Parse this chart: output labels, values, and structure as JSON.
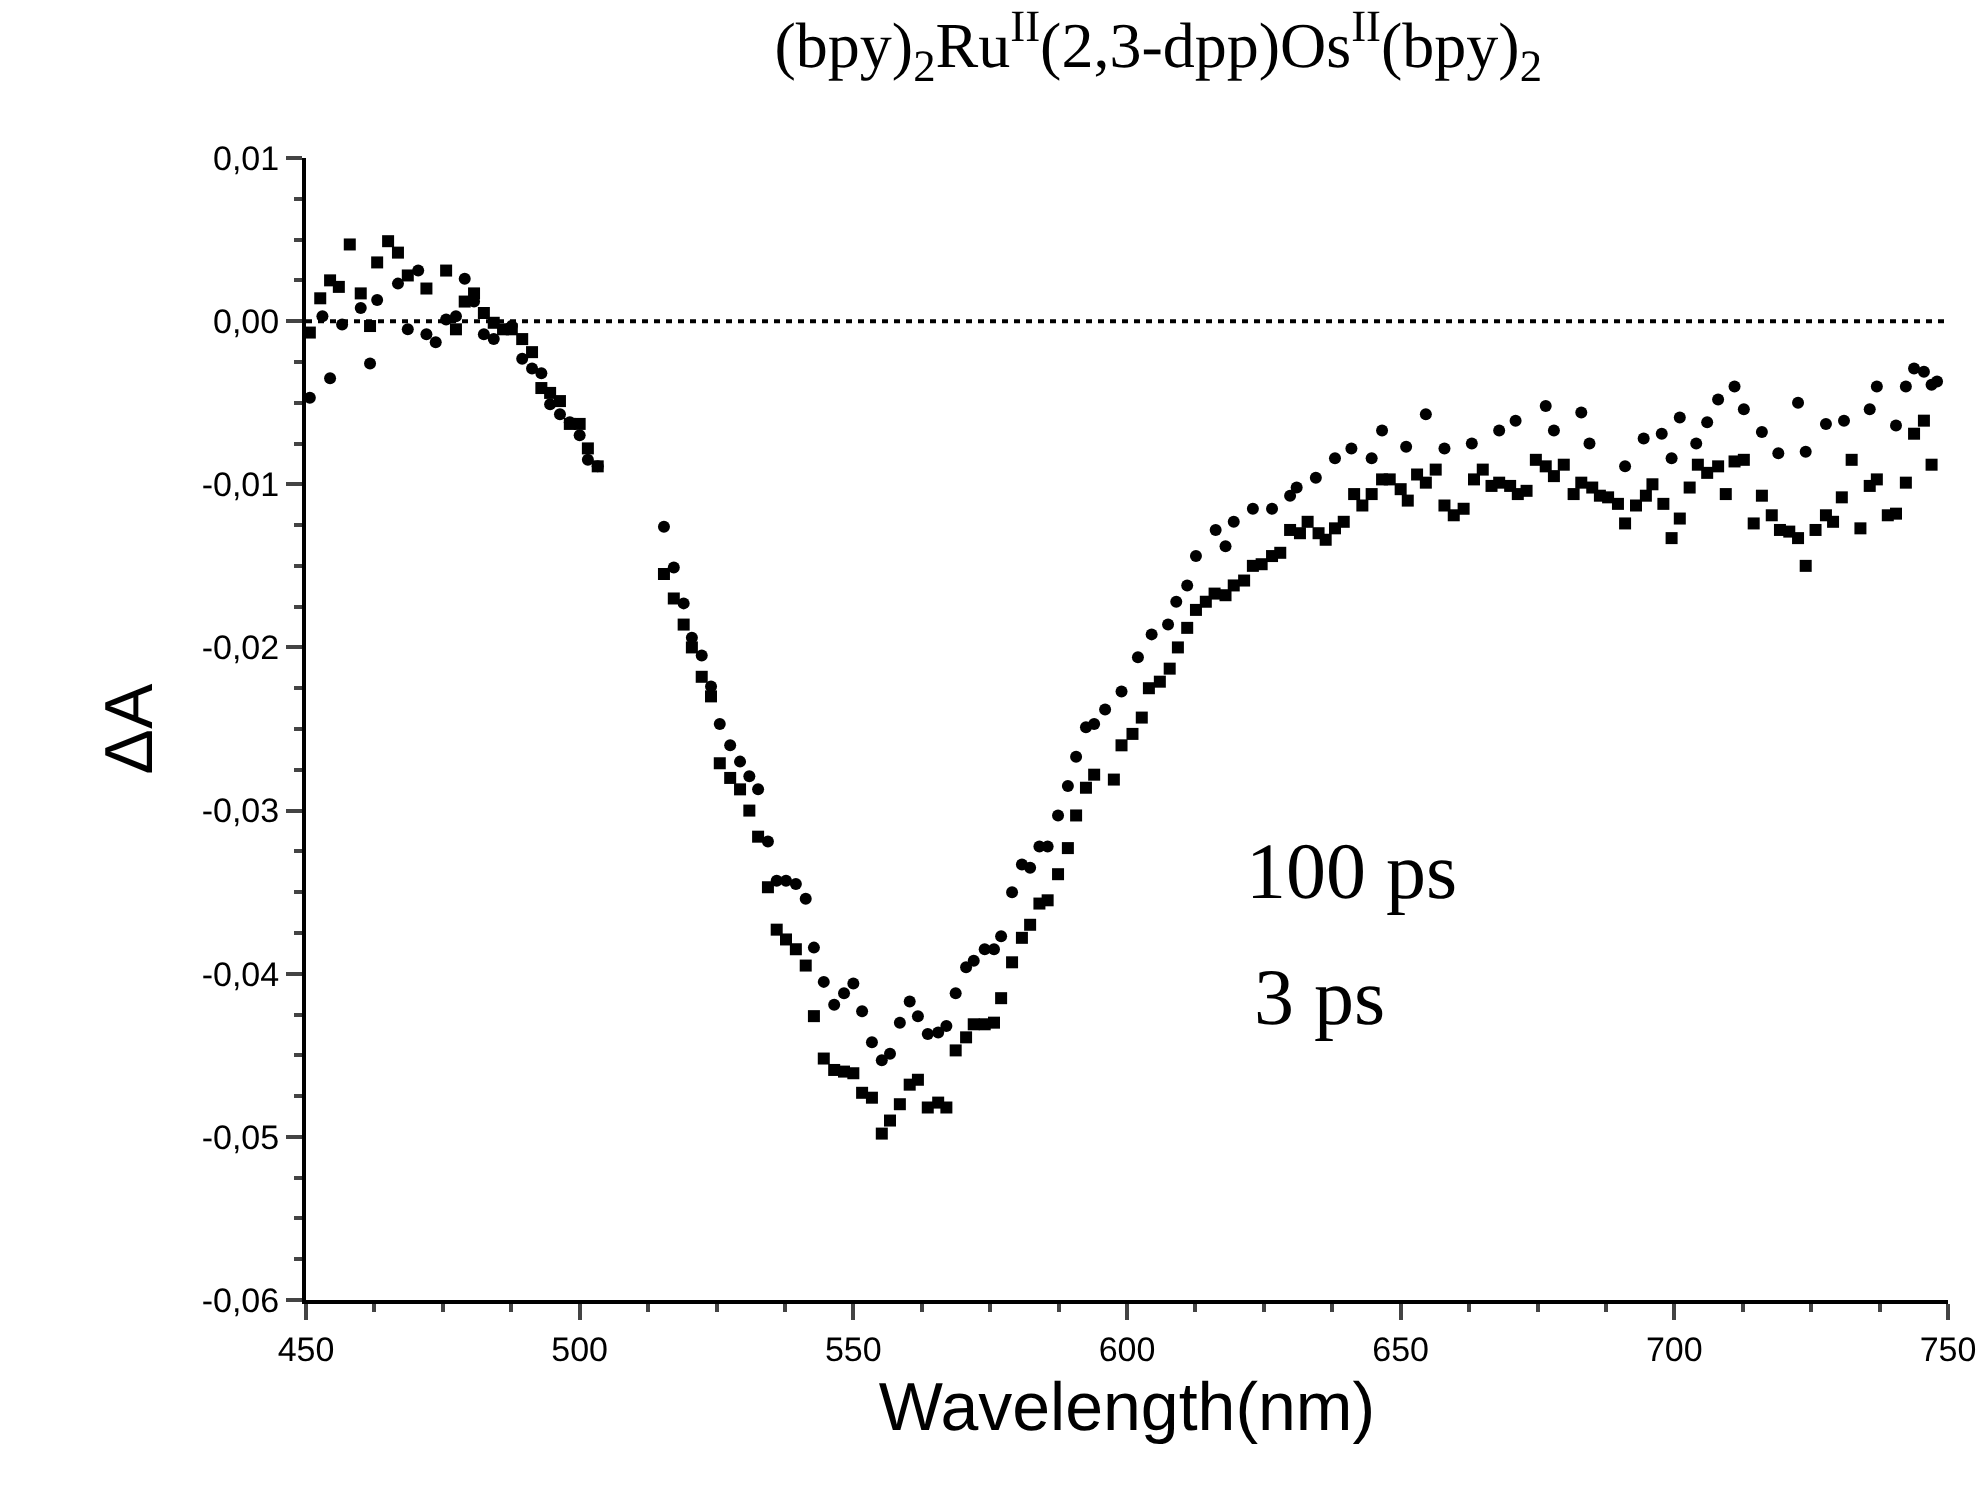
{
  "chart_data": {
    "type": "scatter",
    "title": "(bpy)$_{2}$Ru$^{II}$(2,3-dpp)Os$^{II}$(bpy)$_{2}$",
    "xlabel": "Wavelength(nm)",
    "ylabel": "ΔA",
    "xlim": [
      450,
      750
    ],
    "xticks": [
      450,
      500,
      550,
      600,
      650,
      700,
      750
    ],
    "ylim": [
      -0.06,
      0.01
    ],
    "yticks": [
      {
        "value": -0.06,
        "label": "-0,06"
      },
      {
        "value": -0.05,
        "label": "-0,05"
      },
      {
        "value": -0.04,
        "label": "-0,04"
      },
      {
        "value": -0.03,
        "label": "-0,03"
      },
      {
        "value": -0.02,
        "label": "-0,02"
      },
      {
        "value": -0.01,
        "label": "-0,01"
      },
      {
        "value": 0,
        "label": "0,00"
      },
      {
        "value": 0.01,
        "label": "0,01"
      }
    ],
    "grid": false,
    "ref_lines": [
      {
        "axis": "y",
        "value": 0,
        "line_style": "dotted",
        "color": "#000000"
      }
    ],
    "annotations": [
      "100 ps",
      "3 ps"
    ],
    "series": [
      {
        "color": "#000000",
        "marker": "circle",
        "x": [
          450.7,
          453,
          454.4,
          456.6,
          460,
          461.7,
          463,
          466.8,
          468.6,
          470.5,
          472,
          473.7,
          475.6,
          477.4,
          479,
          480.7,
          482.5,
          484.3,
          487.6,
          489.5,
          491.3,
          493,
          494.6,
          496.4,
          498.2,
          500,
          501.5,
          503.3,
          515.4,
          517.2,
          519,
          520.5,
          522.3,
          524,
          525.6,
          527.5,
          529.3,
          531,
          532.6,
          534.4,
          536,
          537.7,
          539.5,
          541.3,
          542.8,
          544.6,
          546.5,
          548.3,
          550,
          551.6,
          553.4,
          555.2,
          556.7,
          558.5,
          560.3,
          561.8,
          563.6,
          565.5,
          567,
          568.7,
          570.6,
          572,
          574,
          575.7,
          577,
          579,
          580.8,
          582.3,
          584,
          585.5,
          587.4,
          589.2,
          590.7,
          592.5,
          594,
          596,
          599,
          602,
          604.5,
          607.5,
          609,
          611,
          612.6,
          616.2,
          618,
          619.5,
          623,
          626.5,
          629.8,
          631,
          634.5,
          638,
          641,
          644.7,
          646.6,
          651,
          654.6,
          658,
          663,
          668,
          671,
          676.5,
          678,
          683,
          684.5,
          691,
          694.4,
          697.7,
          699.5,
          701,
          704,
          706,
          708,
          711,
          712.7,
          716,
          719,
          722.6,
          724,
          727.7,
          731,
          735.7,
          737,
          740.5,
          742.3,
          743.8,
          745.6,
          747,
          748
        ],
        "values": [
          -0.0047,
          0.0003,
          -0.0035,
          -0.0002,
          0.0008,
          -0.0026,
          0.0013,
          0.0023,
          -0.0005,
          0.0031,
          -0.0008,
          -0.0013,
          0.0001,
          0.0003,
          0.0026,
          0.0012,
          -0.0008,
          -0.0011,
          -0.0003,
          -0.0023,
          -0.0029,
          -0.0032,
          -0.0051,
          -0.0057,
          -0.0062,
          -0.007,
          -0.0085,
          -0.0089,
          -0.0126,
          -0.0151,
          -0.0173,
          -0.0194,
          -0.0205,
          -0.0224,
          -0.0247,
          -0.026,
          -0.027,
          -0.0279,
          -0.0287,
          -0.0319,
          -0.0343,
          -0.0343,
          -0.0345,
          -0.0354,
          -0.0384,
          -0.0405,
          -0.0419,
          -0.0412,
          -0.0406,
          -0.0423,
          -0.0442,
          -0.0453,
          -0.0449,
          -0.043,
          -0.0417,
          -0.0426,
          -0.0437,
          -0.0436,
          -0.0432,
          -0.0412,
          -0.0396,
          -0.0392,
          -0.0385,
          -0.0385,
          -0.0377,
          -0.035,
          -0.0333,
          -0.0335,
          -0.0322,
          -0.0322,
          -0.0303,
          -0.0285,
          -0.0267,
          -0.0249,
          -0.0247,
          -0.0238,
          -0.0227,
          -0.0206,
          -0.0192,
          -0.0186,
          -0.0172,
          -0.0162,
          -0.0144,
          -0.0128,
          -0.0138,
          -0.0123,
          -0.0115,
          -0.0115,
          -0.0107,
          -0.0102,
          -0.0096,
          -0.0084,
          -0.0078,
          -0.0084,
          -0.0067,
          -0.0077,
          -0.0057,
          -0.0078,
          -0.0075,
          -0.0067,
          -0.0061,
          -0.0052,
          -0.0067,
          -0.0056,
          -0.0075,
          -0.0089,
          -0.0072,
          -0.0069,
          -0.0084,
          -0.0059,
          -0.0075,
          -0.0062,
          -0.0048,
          -0.004,
          -0.0054,
          -0.0068,
          -0.0081,
          -0.005,
          -0.008,
          -0.0063,
          -0.0061,
          -0.0054,
          -0.004,
          -0.0064,
          -0.004,
          -0.0029,
          -0.0031,
          -0.0039,
          -0.0037
        ]
      },
      {
        "color": "#000000",
        "marker": "square",
        "x": [
          450.7,
          452.6,
          454.4,
          456,
          458,
          460,
          461.7,
          463,
          465,
          466.8,
          468.6,
          472,
          475.6,
          477.4,
          479,
          480.7,
          482.5,
          484.3,
          486,
          487.6,
          489.5,
          491.3,
          493,
          494.6,
          496.4,
          498.2,
          500,
          501.5,
          503.3,
          515.4,
          517.2,
          519,
          520.5,
          522.3,
          524,
          525.6,
          527.5,
          529.3,
          531,
          532.6,
          534.4,
          536,
          537.7,
          539.5,
          541.3,
          542.8,
          544.6,
          546.5,
          548.3,
          550,
          551.6,
          553.4,
          555.2,
          556.7,
          558.5,
          560.3,
          561.8,
          563.6,
          565.5,
          567,
          568.7,
          570.6,
          572,
          574,
          575.7,
          577,
          579,
          580.8,
          582.3,
          584,
          585.5,
          587.4,
          589.2,
          590.7,
          592.5,
          594,
          597.6,
          599,
          601,
          602.7,
          604,
          606,
          607.8,
          609.3,
          611,
          612.6,
          614.4,
          616,
          618,
          619.5,
          621.4,
          623,
          624.6,
          626.5,
          628,
          629.8,
          631.6,
          633,
          635,
          636.3,
          638,
          639.6,
          641.5,
          643,
          644.7,
          646.6,
          648,
          650,
          651.3,
          653,
          654.6,
          656.4,
          658,
          659.7,
          661.5,
          663.4,
          665,
          666.6,
          668,
          670,
          671.4,
          673,
          674.7,
          676.5,
          678,
          679.8,
          681.6,
          683,
          685,
          686.4,
          687.9,
          689.7,
          691,
          693,
          694.8,
          696,
          698,
          699.5,
          701,
          702.8,
          704.3,
          706,
          708,
          709.4,
          711,
          712.7,
          714.5,
          716,
          717.8,
          719.3,
          721,
          722.6,
          724,
          725.8,
          727.7,
          729,
          730.6,
          732.4,
          734,
          735.7,
          737,
          739,
          740.5,
          742.3,
          743.8,
          745.6,
          747
        ],
        "values": [
          -0.0007,
          0.0014,
          0.0025,
          0.0021,
          0.0047,
          0.0017,
          -0.0003,
          0.0036,
          0.0049,
          0.0042,
          0.0028,
          0.002,
          0.0031,
          -0.0005,
          0.0012,
          0.0017,
          0.0005,
          -0.0001,
          -0.0005,
          -0.0005,
          -0.0011,
          -0.0019,
          -0.0041,
          -0.0044,
          -0.0049,
          -0.0063,
          -0.0063,
          -0.0078,
          -0.0089,
          -0.0155,
          -0.017,
          -0.0186,
          -0.02,
          -0.0218,
          -0.023,
          -0.0271,
          -0.028,
          -0.0287,
          -0.03,
          -0.0316,
          -0.0347,
          -0.0373,
          -0.0379,
          -0.0385,
          -0.0395,
          -0.0426,
          -0.0452,
          -0.0459,
          -0.046,
          -0.0461,
          -0.0473,
          -0.0476,
          -0.0498,
          -0.049,
          -0.048,
          -0.0468,
          -0.0465,
          -0.0482,
          -0.0479,
          -0.0482,
          -0.0447,
          -0.0439,
          -0.0431,
          -0.0431,
          -0.043,
          -0.0415,
          -0.0393,
          -0.0378,
          -0.037,
          -0.0357,
          -0.0355,
          -0.0339,
          -0.0323,
          -0.0303,
          -0.0286,
          -0.0278,
          -0.0281,
          -0.026,
          -0.0253,
          -0.0243,
          -0.0225,
          -0.0221,
          -0.0213,
          -0.02,
          -0.0188,
          -0.0177,
          -0.0172,
          -0.0167,
          -0.0168,
          -0.0162,
          -0.0159,
          -0.015,
          -0.0149,
          -0.0144,
          -0.0142,
          -0.0128,
          -0.013,
          -0.0123,
          -0.013,
          -0.0134,
          -0.0127,
          -0.0123,
          -0.0106,
          -0.0113,
          -0.0106,
          -0.0097,
          -0.0097,
          -0.0103,
          -0.011,
          -0.0094,
          -0.0099,
          -0.0091,
          -0.0113,
          -0.0119,
          -0.0115,
          -0.0097,
          -0.0091,
          -0.0101,
          -0.0099,
          -0.0101,
          -0.0106,
          -0.0104,
          -0.0085,
          -0.0089,
          -0.0095,
          -0.0088,
          -0.0106,
          -0.0099,
          -0.0102,
          -0.0107,
          -0.0108,
          -0.0112,
          -0.0124,
          -0.0113,
          -0.0107,
          -0.01,
          -0.0112,
          -0.0133,
          -0.0121,
          -0.0102,
          -0.0088,
          -0.0093,
          -0.0089,
          -0.0106,
          -0.0086,
          -0.0085,
          -0.0124,
          -0.0107,
          -0.0119,
          -0.0128,
          -0.0129,
          -0.0133,
          -0.015,
          -0.0128,
          -0.0119,
          -0.0123,
          -0.0108,
          -0.0085,
          -0.0127,
          -0.0101,
          -0.0097,
          -0.0119,
          -0.0118,
          -0.0099,
          -0.0069,
          -0.0061,
          -0.0088
        ]
      }
    ]
  }
}
